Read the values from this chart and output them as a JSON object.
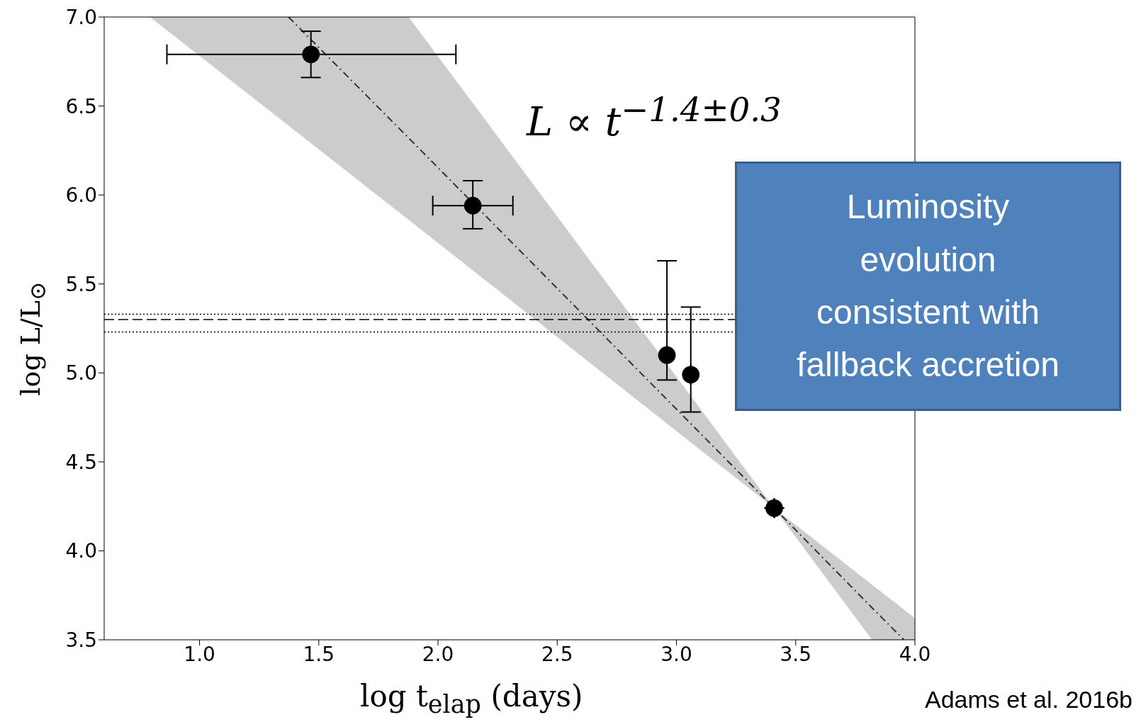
{
  "chart_data": {
    "type": "scatter",
    "xlabel": "log t$_{elap}$ (days)",
    "ylabel": "log L/L$_{⊙}$",
    "xlim": [
      0.6,
      4.0
    ],
    "ylim": [
      3.5,
      7.0
    ],
    "xticks": [
      {
        "value": 1,
        "label": "1.0"
      },
      1.5,
      {
        "value": 2,
        "label": "2.0"
      },
      2.5,
      {
        "value": 3,
        "label": "3.0"
      },
      3.5,
      {
        "value": 4,
        "label": "4.0"
      }
    ],
    "yticks": [
      {
        "value": 3.5,
        "label": "3.5"
      },
      {
        "value": 4,
        "label": "4.0"
      },
      4.5,
      {
        "value": 5,
        "label": "5.0"
      },
      5.5,
      {
        "value": 6,
        "label": "6.0"
      },
      6.5,
      {
        "value": 7,
        "label": "7.0"
      }
    ],
    "grid": false,
    "marker": "circle",
    "series": [
      {
        "type": "line",
        "color": "#333333",
        "line_style": "dashed",
        "marker": "none",
        "x": [
          0.792,
          1.373,
          1.877,
          3.41,
          3.82,
          3.954,
          4.0
        ],
        "values": [
          null,
          7.0,
          6.32,
          4.24,
          3.68,
          3.5,
          null
        ],
        "lower": [
          7.0,
          6.39,
          5.86,
          4.24,
          3.5,
          3.5,
          3.5
        ],
        "upper": [
          7.0,
          7.0,
          7.0,
          4.24,
          3.81,
          3.67,
          3.62
        ]
      },
      {
        "type": "scatter",
        "color": "#000000",
        "x": [
          1.467,
          2.146,
          2.96,
          3.06,
          3.41
        ],
        "values": [
          6.79,
          5.94,
          5.1,
          4.99,
          4.24
        ],
        "errors": [
          [
            6.66,
            6.92
          ],
          [
            5.81,
            6.08
          ],
          [
            4.96,
            5.63
          ],
          [
            4.78,
            5.37
          ],
          null
        ],
        "xerrors": [
          [
            0.863,
            2.075
          ],
          [
            1.978,
            2.314
          ],
          null,
          null,
          null
        ]
      }
    ],
    "ref_lines": [
      {
        "axis": "y",
        "value": 5.3,
        "line_style": "dashed",
        "color": "#000000"
      },
      {
        "axis": "y",
        "value": 5.33,
        "line_style": "dotted",
        "color": "#000000"
      },
      {
        "axis": "y",
        "value": 5.23,
        "line_style": "dotted",
        "color": "#000000"
      }
    ],
    "annotations": [
      "L ∝ t$^{−1.4±0.3}$",
      "Luminosity evolution consistent with fallback accretion",
      "Adams et al. 2016b"
    ]
  }
}
